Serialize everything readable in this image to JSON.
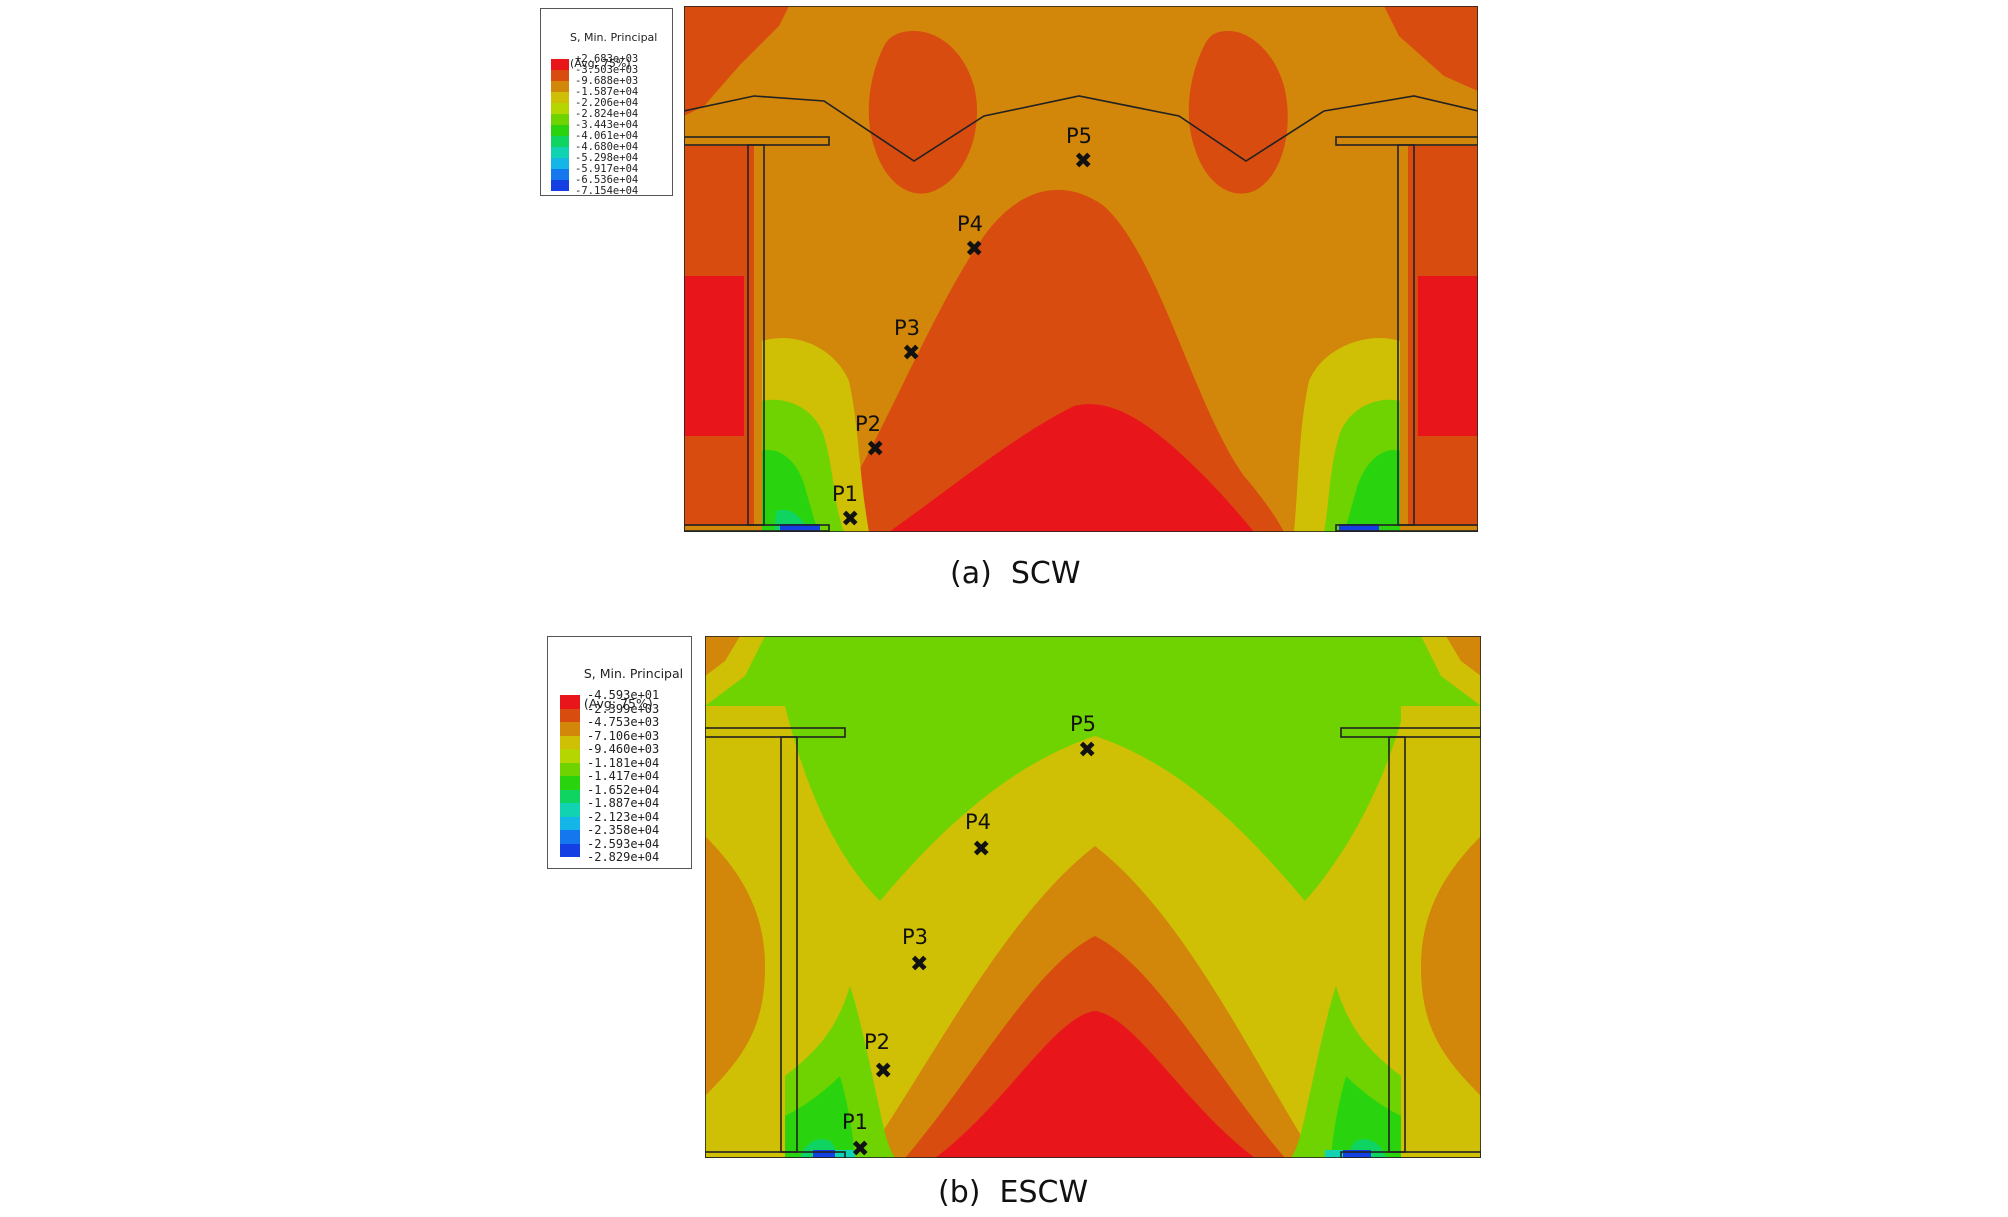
{
  "figures": [
    {
      "id": "scw",
      "caption": "(a)  SCW",
      "legend": {
        "title_line1": "S, Min. Principal",
        "title_line2": "(Avg: 75%)",
        "ticks": [
          "+2.683e+03",
          "-3.503e+03",
          "-9.688e+03",
          "-1.587e+04",
          "-2.206e+04",
          "-2.824e+04",
          "-3.443e+04",
          "-4.061e+04",
          "-4.680e+04",
          "-5.298e+04",
          "-5.917e+04",
          "-6.536e+04",
          "-7.154e+04"
        ],
        "colors": [
          "#e8161b",
          "#d84c10",
          "#d2860a",
          "#cfbf05",
          "#b5d600",
          "#6ed300",
          "#29d40f",
          "#10d462",
          "#11d2b1",
          "#13b6e6",
          "#1577ee",
          "#1440e3"
        ]
      },
      "points": [
        {
          "label": "P5",
          "mark": "✖"
        },
        {
          "label": "P4",
          "mark": "✖"
        },
        {
          "label": "P3",
          "mark": "✖"
        },
        {
          "label": "P2",
          "mark": "✖"
        },
        {
          "label": "P1",
          "mark": "✖"
        }
      ]
    },
    {
      "id": "escw",
      "caption": "(b)  ESCW",
      "legend": {
        "title_line1": "S, Min. Principal",
        "title_line2": "(Avg: 75%)",
        "ticks": [
          "-4.593e+01",
          "-2.399e+03",
          "-4.753e+03",
          "-7.106e+03",
          "-9.460e+03",
          "-1.181e+04",
          "-1.417e+04",
          "-1.652e+04",
          "-1.887e+04",
          "-2.123e+04",
          "-2.358e+04",
          "-2.593e+04",
          "-2.829e+04"
        ],
        "colors": [
          "#e8161b",
          "#d84c10",
          "#d2860a",
          "#cfbf05",
          "#b5d600",
          "#6ed300",
          "#29d40f",
          "#10d462",
          "#11d2b1",
          "#13b6e6",
          "#1577ee",
          "#1440e3"
        ]
      },
      "points": [
        {
          "label": "P5",
          "mark": "✖"
        },
        {
          "label": "P4",
          "mark": "✖"
        },
        {
          "label": "P3",
          "mark": "✖"
        },
        {
          "label": "P2",
          "mark": "✖"
        },
        {
          "label": "P1",
          "mark": "✖"
        }
      ]
    }
  ]
}
